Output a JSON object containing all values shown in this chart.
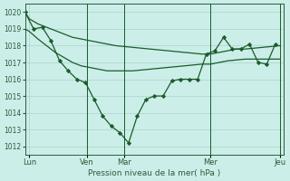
{
  "background_color": "#cceee8",
  "grid_color": "#aad4cc",
  "line_color": "#1a5c2a",
  "marker_color": "#1a5c2a",
  "series1_x": [
    0,
    0.5,
    1.5,
    2.5,
    3.5,
    4.5,
    5.5,
    6.5,
    7.5,
    8.5,
    9.5,
    10.5,
    11.5,
    12.5,
    13.5,
    14.5,
    15.5,
    16.5,
    17.5,
    18.5,
    19.5,
    20.5,
    21.5,
    22.5,
    23.5,
    24.5,
    25.5,
    26.5,
    27.5,
    28.5,
    29.5
  ],
  "series1_y": [
    1020,
    1019.6,
    1019.3,
    1019.1,
    1018.9,
    1018.7,
    1018.5,
    1018.4,
    1018.3,
    1018.2,
    1018.1,
    1018.0,
    1017.95,
    1017.9,
    1017.85,
    1017.8,
    1017.75,
    1017.7,
    1017.65,
    1017.6,
    1017.55,
    1017.5,
    1017.5,
    1017.6,
    1017.7,
    1017.8,
    1017.8,
    1017.85,
    1017.9,
    1017.95,
    1018.0
  ],
  "series2_x": [
    0,
    0.5,
    1.5,
    2.5,
    3.5,
    4.5,
    5.5,
    6.5,
    7.5,
    8.5,
    9.5,
    10.5,
    11.5,
    12.5,
    13.5,
    14.5,
    15.5,
    16.5,
    17.5,
    18.5,
    19.5,
    20.5,
    21.5,
    22.5,
    23.5,
    24.5,
    25.5,
    26.5,
    27.5,
    28.5,
    29.5
  ],
  "series2_y": [
    1019.0,
    1018.85,
    1018.4,
    1018.0,
    1017.6,
    1017.3,
    1017.0,
    1016.8,
    1016.7,
    1016.6,
    1016.5,
    1016.5,
    1016.5,
    1016.5,
    1016.55,
    1016.6,
    1016.65,
    1016.7,
    1016.75,
    1016.8,
    1016.85,
    1016.9,
    1016.9,
    1017.0,
    1017.1,
    1017.15,
    1017.2,
    1017.2,
    1017.2,
    1017.2,
    1017.2
  ],
  "series3_x": [
    0,
    1,
    2,
    3,
    4,
    5,
    6,
    7,
    8,
    9,
    10,
    11,
    12,
    13,
    14,
    15,
    16,
    17,
    18,
    19,
    20,
    21,
    22,
    23,
    24,
    25,
    26,
    27,
    28,
    29
  ],
  "series3_y": [
    1020,
    1019.0,
    1019.1,
    1018.3,
    1017.1,
    1016.5,
    1016.0,
    1015.8,
    1014.8,
    1013.8,
    1013.2,
    1012.8,
    1012.2,
    1013.8,
    1014.8,
    1015.0,
    1015.0,
    1015.9,
    1016.0,
    1016.0,
    1016.0,
    1017.5,
    1017.7,
    1018.5,
    1017.8,
    1017.8,
    1018.1,
    1017.0,
    1016.9,
    1018.1
  ],
  "vline_x_positions": [
    7.2,
    11.5,
    21.5,
    29.5
  ],
  "xlim": [
    0,
    30
  ],
  "ylim": [
    1011.5,
    1020.5
  ],
  "yticks": [
    1012,
    1013,
    1014,
    1015,
    1016,
    1017,
    1018,
    1019,
    1020
  ],
  "xtick_positions": [
    0.5,
    7.2,
    11.5,
    21.5,
    29.5
  ],
  "xtick_labels": [
    "Lun",
    "Ven",
    "Mar",
    "Mer",
    "Jeu"
  ],
  "xlabel": "Pression niveau de la mer( hPa )"
}
